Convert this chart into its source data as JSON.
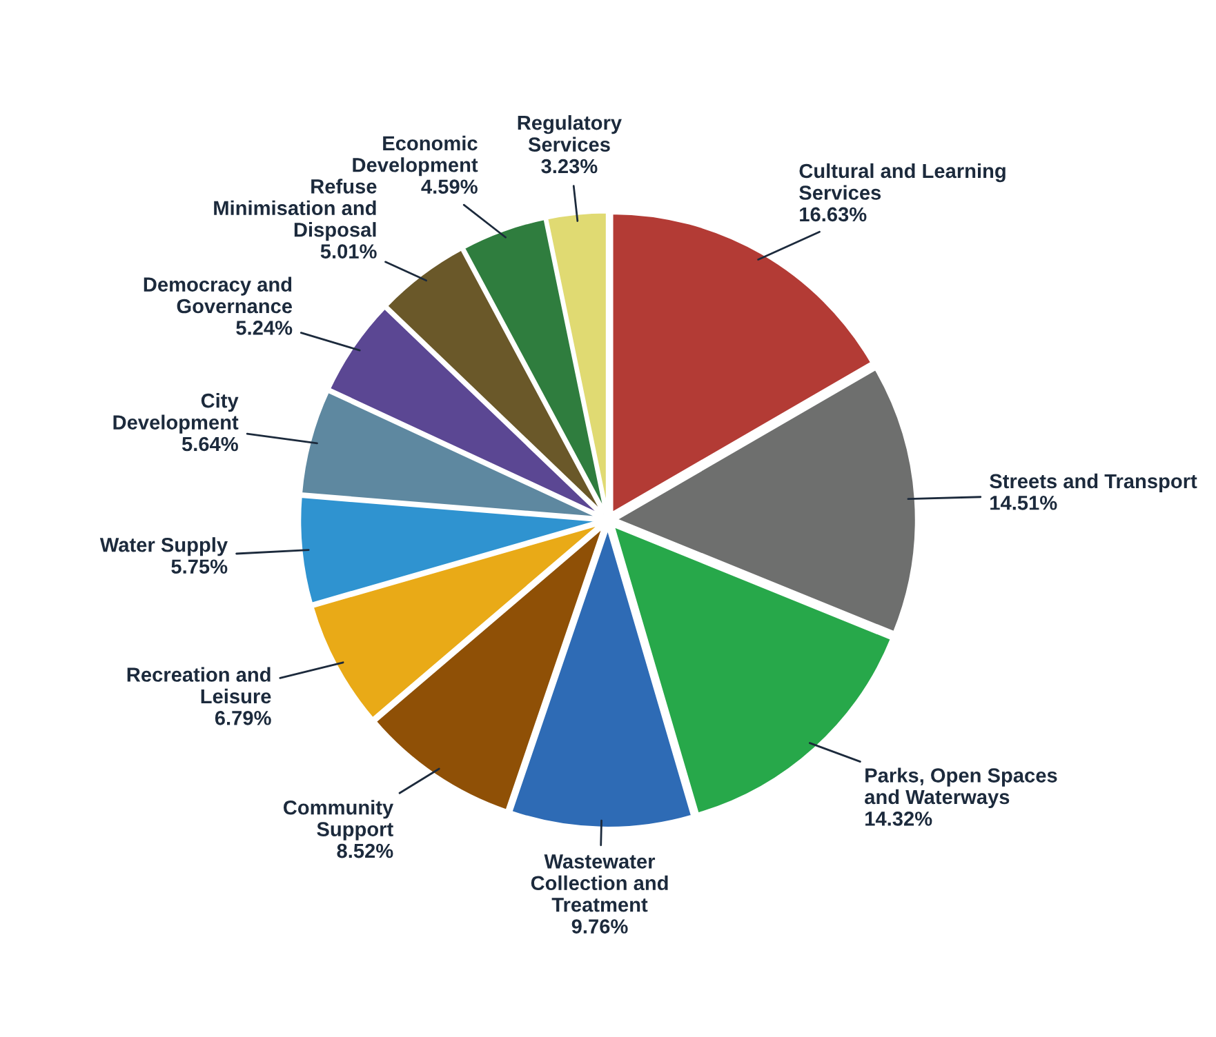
{
  "chart_data": {
    "type": "pie",
    "categories": [
      "Cultural and Learning\nServices",
      "Streets and Transport",
      "Parks, Open Spaces\nand Waterways",
      "Wastewater\nCollection and\nTreatment",
      "Community\nSupport",
      "Recreation and\nLeisure",
      "Water Supply",
      "City\nDevelopment",
      "Democracy and\nGovernance",
      "Refuse\nMinimisation and\nDisposal",
      "Economic\nDevelopment",
      "Regulatory\nServices"
    ],
    "values": [
      16.63,
      14.51,
      14.32,
      9.76,
      8.52,
      6.79,
      5.75,
      5.64,
      5.24,
      5.01,
      4.59,
      3.23
    ],
    "value_labels": [
      "16.63%",
      "14.51%",
      "14.32%",
      "9.76%",
      "8.52%",
      "6.79%",
      "5.75%",
      "5.64%",
      "5.24%",
      "5.01%",
      "4.59%",
      "3.23%"
    ],
    "colors": [
      "#b33b35",
      "#6e6f6e",
      "#27a84a",
      "#2e6bb5",
      "#8f5006",
      "#e9aa17",
      "#2f93d0",
      "#5e88a0",
      "#5b4793",
      "#6a5829",
      "#2f7d3e",
      "#e0da72"
    ]
  }
}
